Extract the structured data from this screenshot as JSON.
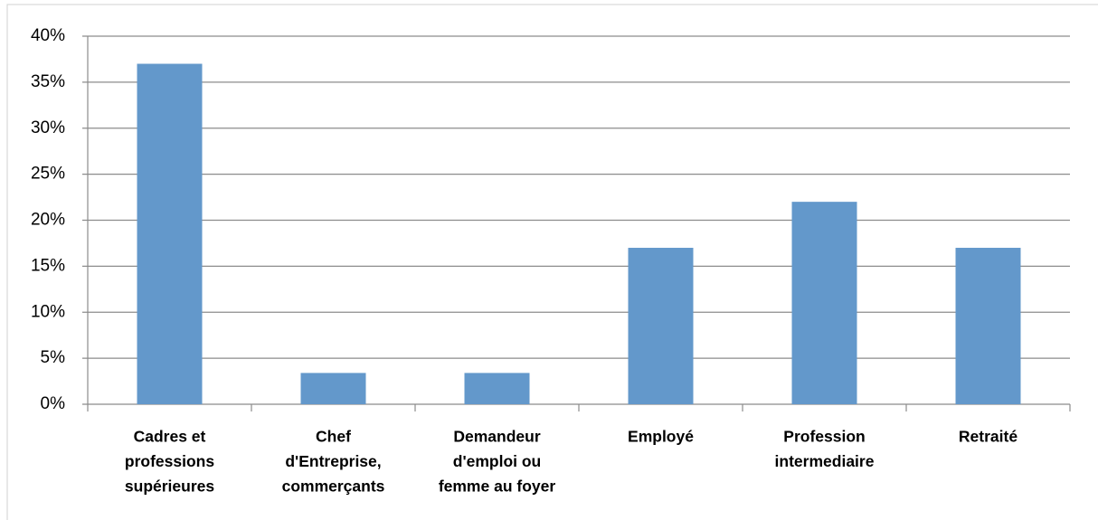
{
  "chart_data": {
    "type": "bar",
    "categories": [
      [
        "Cadres et",
        "professions",
        "supérieures"
      ],
      [
        "Chef",
        "d'Entreprise,",
        "commerçants"
      ],
      [
        "Demandeur",
        "d'emploi ou",
        "femme au foyer"
      ],
      [
        "Employé"
      ],
      [
        "Profession",
        "intermediaire"
      ],
      [
        "Retraité"
      ]
    ],
    "values": [
      37,
      3.4,
      3.4,
      17,
      22,
      17
    ],
    "color": "#6398cb",
    "ylim": [
      0,
      40
    ],
    "yticks": [
      {
        "value": 0,
        "label": "0%"
      },
      {
        "value": 5,
        "label": "5%"
      },
      {
        "value": 10,
        "label": "10%"
      },
      {
        "value": 15,
        "label": "15%"
      },
      {
        "value": 20,
        "label": "20%"
      },
      {
        "value": 25,
        "label": "25%"
      },
      {
        "value": 30,
        "label": "30%"
      },
      {
        "value": 35,
        "label": "35%"
      },
      {
        "value": 40,
        "label": "40%"
      }
    ],
    "grid": true
  }
}
